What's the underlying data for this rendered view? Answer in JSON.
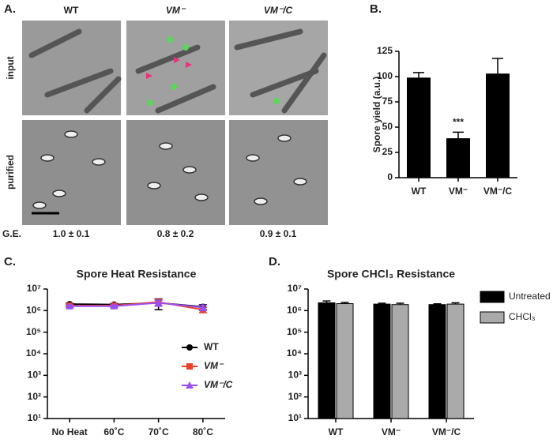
{
  "panel_a": {
    "panel_label": "A.",
    "columns": [
      "WT",
      "VM⁻",
      "VM⁻/C"
    ],
    "rows": [
      "input",
      "purified"
    ],
    "ge_label": "G.E.",
    "ge_values": [
      "1.0 ± 0.1",
      "0.8 ± 0.2",
      "0.9 ± 0.1"
    ]
  },
  "chart_data": [
    {
      "type": "bar",
      "panel_label": "B.",
      "y_label": "Spore yield (a.u.)",
      "categories": [
        "WT",
        "VM⁻",
        "VM⁻/C"
      ],
      "values": [
        99,
        39,
        103
      ],
      "errors": [
        5,
        6,
        15
      ],
      "color": "#000000",
      "ylim": [
        0,
        125
      ],
      "yticks": [
        0,
        25,
        50,
        75,
        100,
        125
      ],
      "annotations": [
        {
          "text": "***",
          "category": "VM⁻"
        }
      ]
    },
    {
      "type": "line",
      "panel_label": "C.",
      "title": "Spore Heat Resistance",
      "log_scale": true,
      "legend": "lower right",
      "categories": [
        "No Heat",
        "60˚C",
        "70˚C",
        "80˚C"
      ],
      "series": [
        {
          "name": "WT",
          "color": "#000000",
          "marker": "circle",
          "values": [
            2000000,
            1900000,
            2300000,
            1500000
          ],
          "errors": [
            200000,
            200000,
            1200000,
            400000
          ]
        },
        {
          "name": "VM⁻",
          "color": "#e8412c",
          "marker": "square",
          "values": [
            1700000,
            1700000,
            2500000,
            1100000
          ],
          "errors": [
            200000,
            200000,
            800000,
            300000
          ]
        },
        {
          "name": "VM⁻/C",
          "color": "#9b4ff0",
          "marker": "triangle",
          "values": [
            1600000,
            1600000,
            2300000,
            1400000
          ],
          "errors": [
            200000,
            200000,
            700000,
            400000
          ]
        }
      ],
      "ylim": [
        10,
        10000000
      ],
      "yticks": [
        {
          "value": 10,
          "label": "10¹"
        },
        {
          "value": 100,
          "label": "10²"
        },
        {
          "value": 1000,
          "label": "10³"
        },
        {
          "value": 10000,
          "label": "10⁴"
        },
        {
          "value": 100000,
          "label": "10⁵"
        },
        {
          "value": 1000000,
          "label": "10⁶"
        },
        {
          "value": 10000000,
          "label": "10⁷"
        }
      ]
    },
    {
      "type": "grouped_bar",
      "panel_label": "D.",
      "title": "Spore CHCl₃ Resistance",
      "log_scale": true,
      "legend": "right",
      "categories": [
        "WT",
        "VM⁻",
        "VM⁻/C"
      ],
      "series": [
        {
          "name": "Untreated",
          "color": "#000000",
          "values": [
            2300000,
            2000000,
            1900000
          ],
          "errors": [
            500000,
            200000,
            150000
          ]
        },
        {
          "name": "CHCl₃",
          "color": "#aaaaaa",
          "values": [
            2100000,
            1900000,
            2000000
          ],
          "errors": [
            300000,
            300000,
            300000
          ]
        }
      ],
      "ylim": [
        10,
        10000000
      ],
      "yticks": [
        {
          "value": 10,
          "label": "10¹"
        },
        {
          "value": 100,
          "label": "10²"
        },
        {
          "value": 1000,
          "label": "10³"
        },
        {
          "value": 10000,
          "label": "10⁴"
        },
        {
          "value": 100000,
          "label": "10⁵"
        },
        {
          "value": 1000000,
          "label": "10⁶"
        },
        {
          "value": 10000000,
          "label": "10⁷"
        }
      ]
    }
  ]
}
